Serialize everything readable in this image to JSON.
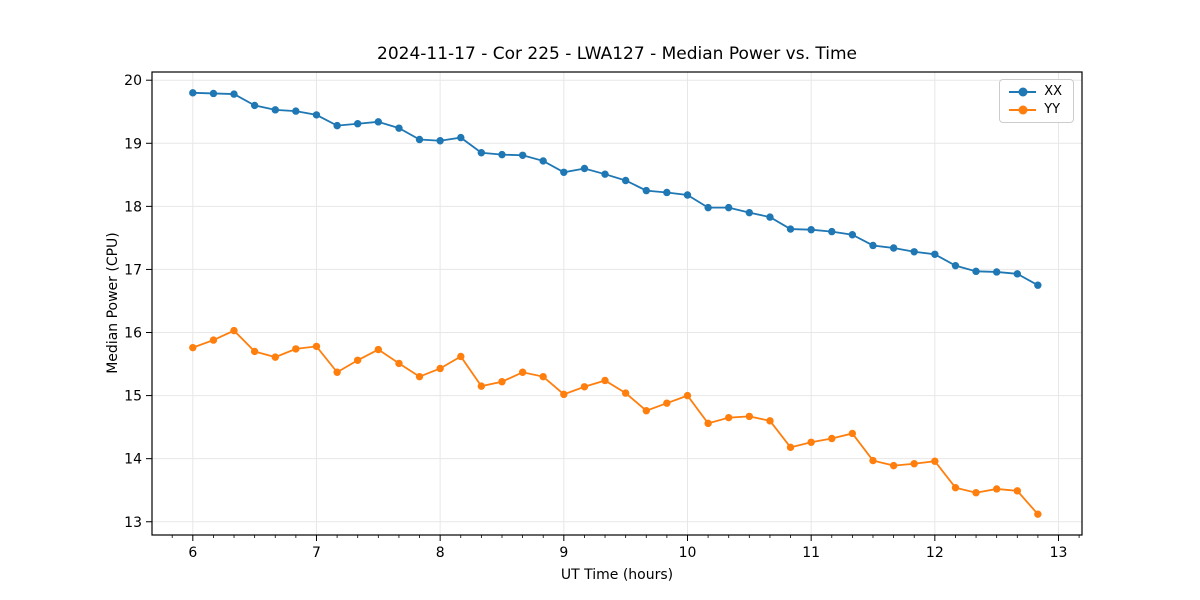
{
  "chart_data": {
    "type": "line",
    "title": "2024-11-17 - Cor 225 - LWA127 - Median Power vs. Time",
    "xlabel": "UT Time (hours)",
    "ylabel": "Median Power (CPU)",
    "grid": true,
    "legend_position": "upper right",
    "marker": "o",
    "xlim": [
      5.67,
      13.19
    ],
    "ylim": [
      12.79,
      20.13
    ],
    "xticks": [
      6,
      7,
      8,
      9,
      10,
      11,
      12,
      13
    ],
    "yticks": [
      13,
      14,
      15,
      16,
      17,
      18,
      19,
      20
    ],
    "x_minor_step": 0.1667,
    "x": [
      6.0,
      6.167,
      6.333,
      6.5,
      6.667,
      6.833,
      7.0,
      7.167,
      7.333,
      7.5,
      7.667,
      7.833,
      8.0,
      8.167,
      8.333,
      8.5,
      8.667,
      8.833,
      9.0,
      9.167,
      9.333,
      9.5,
      9.667,
      9.833,
      10.0,
      10.167,
      10.333,
      10.5,
      10.667,
      10.833,
      11.0,
      11.167,
      11.333,
      11.5,
      11.667,
      11.833,
      12.0,
      12.167,
      12.333,
      12.5,
      12.667,
      12.833
    ],
    "series": [
      {
        "name": "XX",
        "color": "#1f77b4",
        "values": [
          19.8,
          19.79,
          19.78,
          19.6,
          19.53,
          19.51,
          19.45,
          19.28,
          19.31,
          19.34,
          19.24,
          19.06,
          19.04,
          19.09,
          18.85,
          18.82,
          18.81,
          18.72,
          18.54,
          18.6,
          18.51,
          18.41,
          18.25,
          18.22,
          18.18,
          17.98,
          17.98,
          17.9,
          17.83,
          17.64,
          17.63,
          17.6,
          17.55,
          17.38,
          17.34,
          17.28,
          17.24,
          17.06,
          16.97,
          16.96,
          16.93,
          16.75
        ]
      },
      {
        "name": "YY",
        "color": "#ff7f0e",
        "values": [
          15.76,
          15.88,
          16.03,
          15.7,
          15.61,
          15.74,
          15.78,
          15.37,
          15.56,
          15.73,
          15.51,
          15.3,
          15.43,
          15.62,
          15.15,
          15.22,
          15.37,
          15.3,
          15.02,
          15.14,
          15.24,
          15.04,
          14.76,
          14.88,
          15.0,
          14.56,
          14.65,
          14.67,
          14.6,
          14.18,
          14.26,
          14.32,
          14.4,
          13.97,
          13.89,
          13.92,
          13.96,
          13.54,
          13.46,
          13.52,
          13.49,
          13.12
        ]
      }
    ],
    "style": {
      "grid_color": "#e7e7e7",
      "spine_color": "#000000",
      "tick_color": "#000000",
      "tick_label_color": "#000000",
      "background": "#ffffff"
    }
  }
}
